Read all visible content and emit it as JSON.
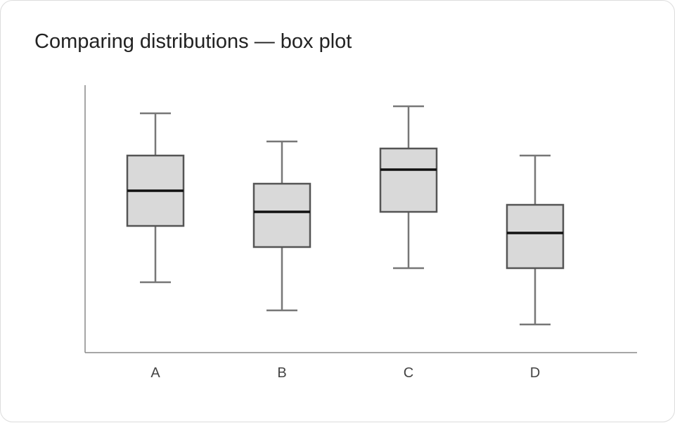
{
  "chart_data": {
    "type": "box",
    "title": "Comparing distributions — box plot",
    "xlabel": "",
    "ylabel": "",
    "categories": [
      "A",
      "B",
      "C",
      "D"
    ],
    "boxes": [
      {
        "category": "A",
        "whisker_low": 10,
        "q1": 18,
        "median": 23,
        "q3": 28,
        "whisker_high": 34
      },
      {
        "category": "B",
        "whisker_low": 6,
        "q1": 15,
        "median": 20,
        "q3": 24,
        "whisker_high": 30
      },
      {
        "category": "C",
        "whisker_low": 12,
        "q1": 20,
        "median": 26,
        "q3": 29,
        "whisker_high": 35
      },
      {
        "category": "D",
        "whisker_low": 4,
        "q1": 12,
        "median": 17,
        "q3": 21,
        "whisker_high": 28
      }
    ],
    "ylim": [
      0,
      38
    ],
    "y_ticks_shown": false,
    "grid": false,
    "colors": {
      "box_fill": "#d9d9d9",
      "box_stroke": "#555555",
      "whisker": "#777777",
      "median": "#111111",
      "axis": "#888888"
    }
  }
}
